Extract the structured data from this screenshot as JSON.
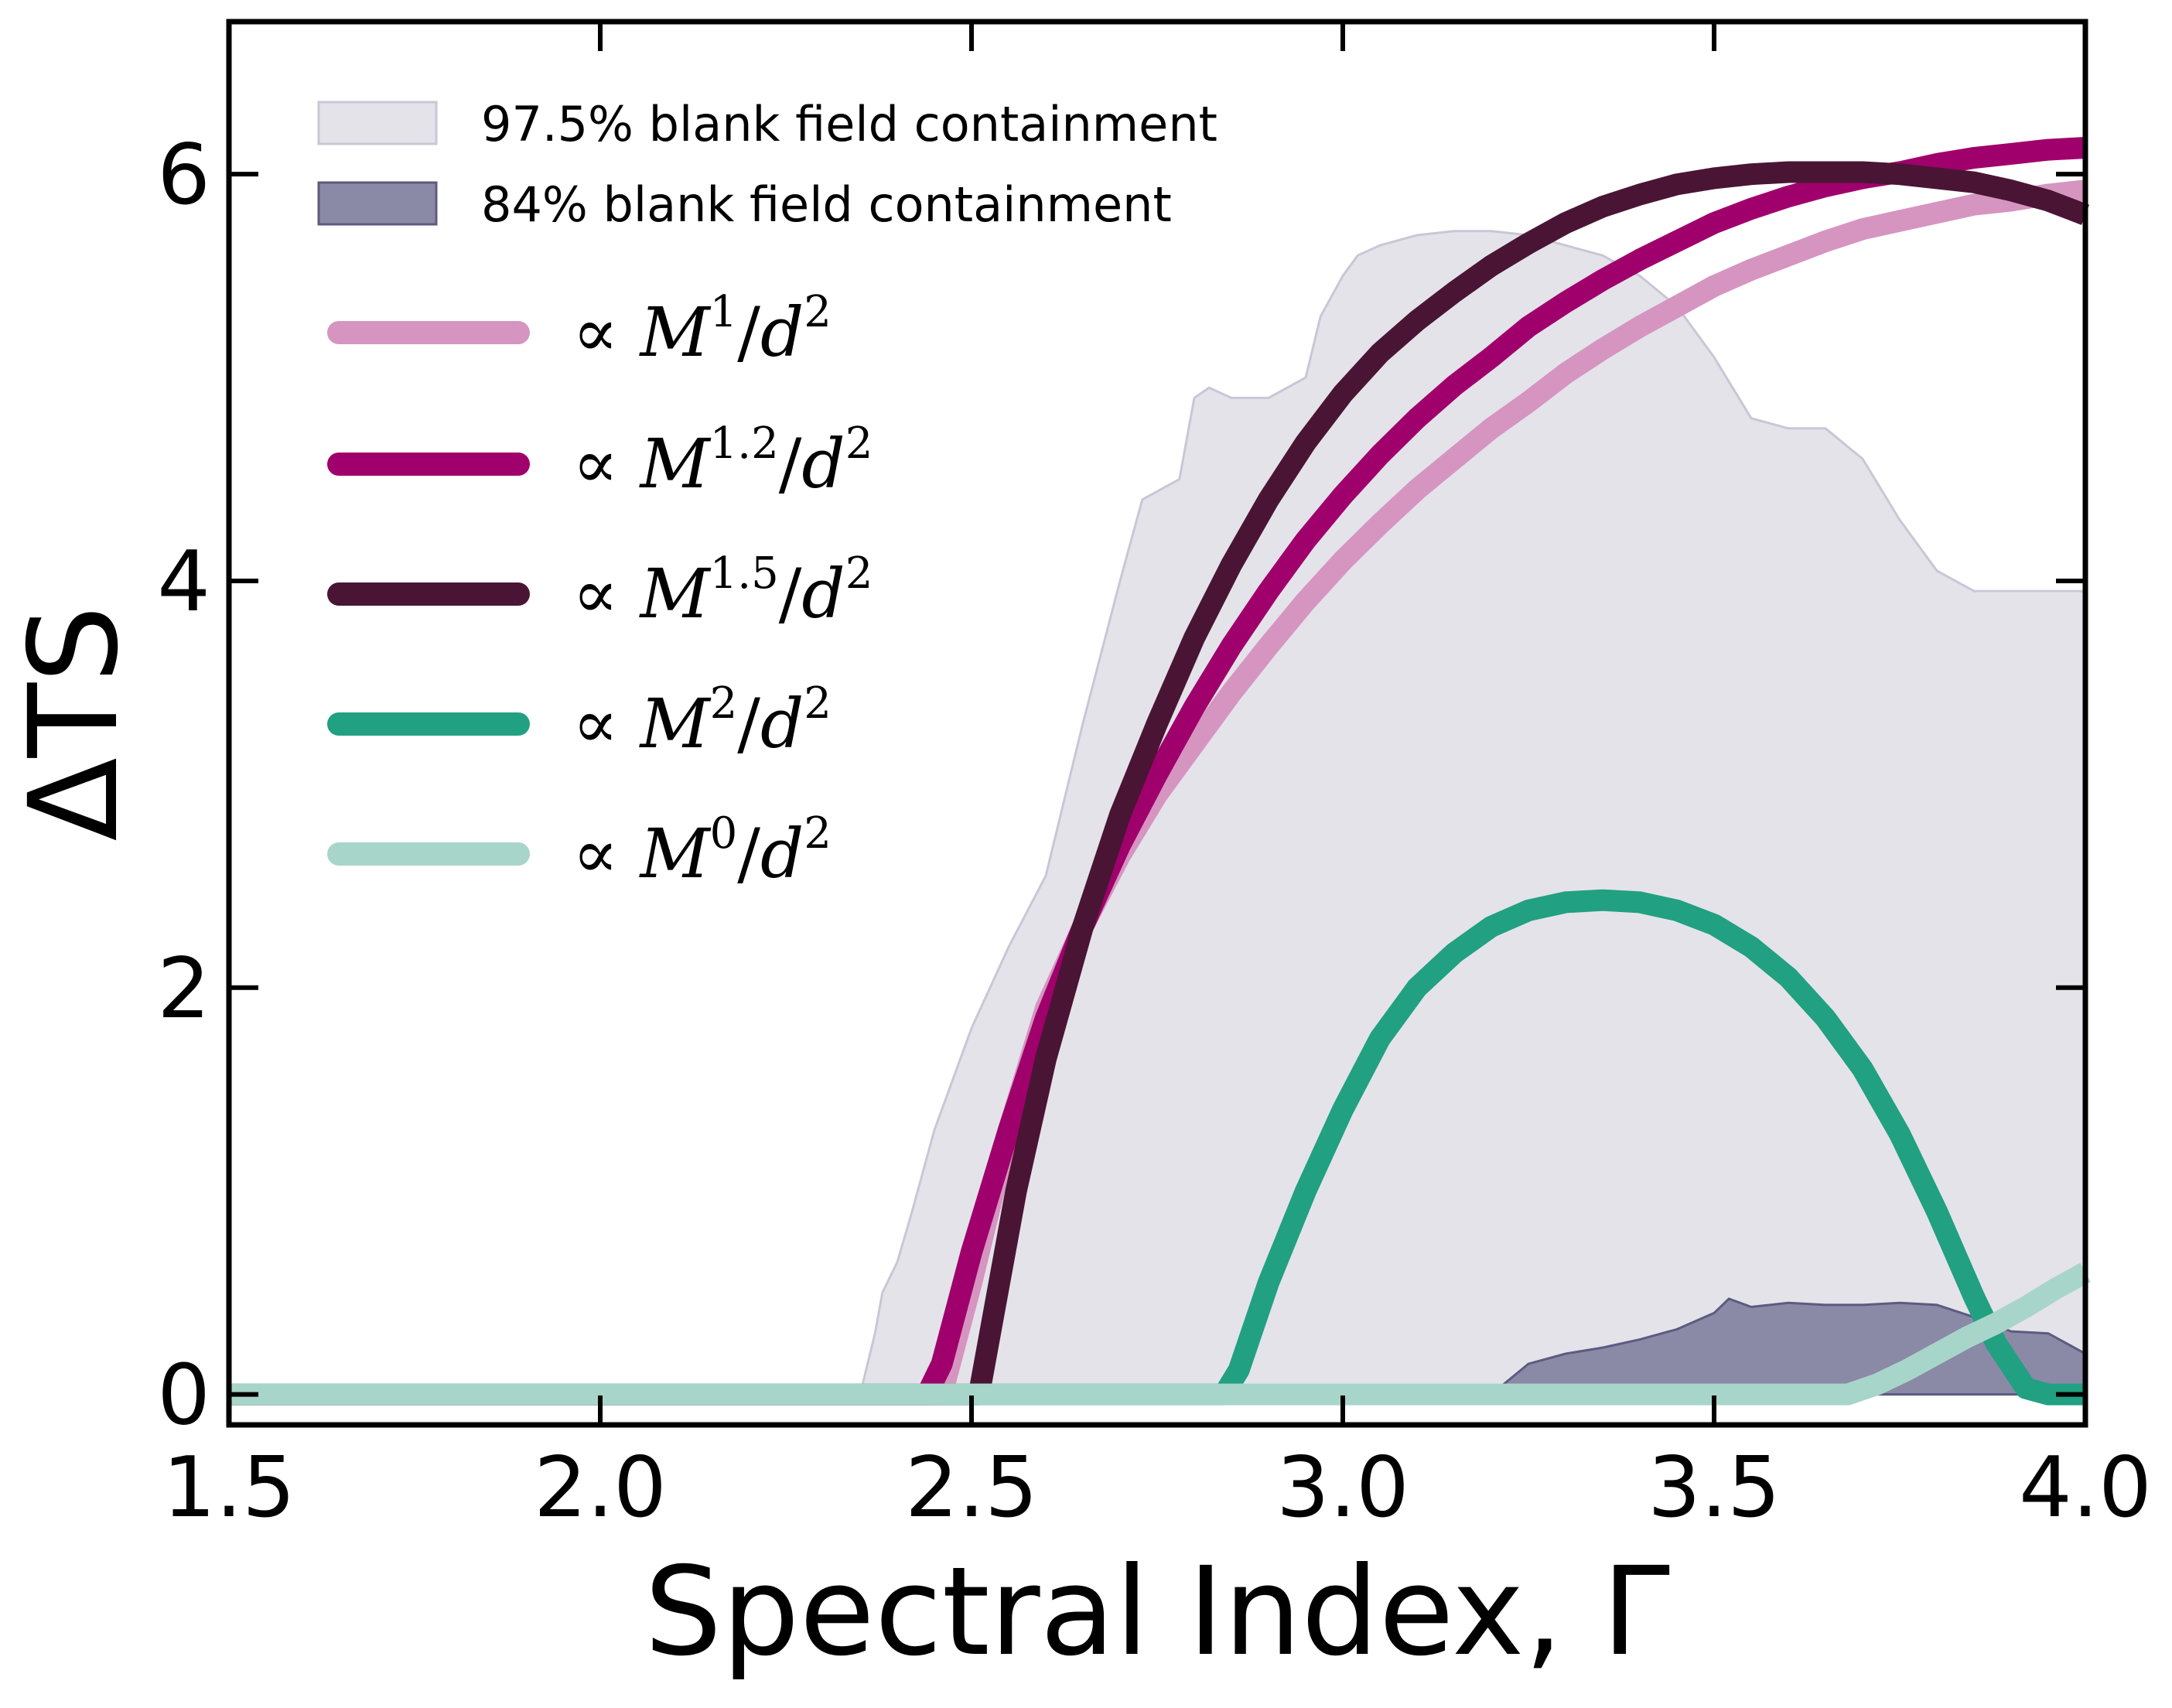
{
  "chart_data": {
    "type": "line",
    "xlabel": "Spectral Index, Γ",
    "ylabel": "ΔTS",
    "xlim": [
      1.5,
      4.0
    ],
    "ylim": [
      -0.15,
      6.75
    ],
    "xticks": [
      1.5,
      2.0,
      2.5,
      3.0,
      3.5,
      4.0
    ],
    "xtick_labels": [
      "1.5",
      "2.0",
      "2.5",
      "3.0",
      "3.5",
      "4.0"
    ],
    "yticks": [
      0,
      2,
      4,
      6
    ],
    "ytick_labels": [
      "0",
      "2",
      "4",
      "6"
    ],
    "legend_position": "upper-left",
    "bands": [
      {
        "name": "97.5% blank field containment",
        "color": "#e4e3ea",
        "edge_color": "#c9c7d6",
        "x": [
          1.5,
          2.35,
          2.37,
          2.38,
          2.4,
          2.42,
          2.45,
          2.5,
          2.55,
          2.6,
          2.65,
          2.7,
          2.73,
          2.78,
          2.8,
          2.82,
          2.85,
          2.9,
          2.95,
          2.97,
          3.0,
          3.02,
          3.05,
          3.1,
          3.15,
          3.2,
          3.25,
          3.3,
          3.35,
          3.4,
          3.45,
          3.5,
          3.55,
          3.6,
          3.65,
          3.7,
          3.75,
          3.8,
          3.85,
          3.9,
          4.0
        ],
        "upper": [
          0,
          0,
          0.3,
          0.5,
          0.65,
          0.9,
          1.3,
          1.8,
          2.2,
          2.55,
          3.3,
          4.0,
          4.4,
          4.5,
          4.9,
          4.95,
          4.9,
          4.9,
          5.0,
          5.3,
          5.5,
          5.6,
          5.65,
          5.7,
          5.72,
          5.72,
          5.7,
          5.65,
          5.6,
          5.5,
          5.35,
          5.1,
          4.8,
          4.75,
          4.75,
          4.6,
          4.3,
          4.05,
          3.95,
          3.95,
          3.95
        ],
        "lower": [
          0,
          0,
          0,
          0,
          0,
          0,
          0,
          0,
          0,
          0,
          0,
          0,
          0,
          0,
          0,
          0,
          0,
          0,
          0,
          0,
          0,
          0,
          0,
          0,
          0,
          0,
          0,
          0,
          0,
          0,
          0,
          0,
          0,
          0,
          0,
          0,
          0,
          0,
          0,
          0,
          0
        ]
      },
      {
        "name": "84% blank field containment",
        "color": "#8a89a6",
        "edge_color": "#5c5b80",
        "x": [
          1.5,
          3.2,
          3.22,
          3.25,
          3.3,
          3.35,
          3.4,
          3.45,
          3.5,
          3.52,
          3.55,
          3.6,
          3.65,
          3.7,
          3.75,
          3.8,
          3.85,
          3.9,
          3.95,
          4.0
        ],
        "upper": [
          0,
          0,
          0.06,
          0.15,
          0.2,
          0.23,
          0.27,
          0.32,
          0.4,
          0.47,
          0.43,
          0.45,
          0.44,
          0.44,
          0.45,
          0.44,
          0.38,
          0.31,
          0.3,
          0.2
        ],
        "lower": [
          0,
          0,
          0,
          0,
          0,
          0,
          0,
          0,
          0,
          0,
          0,
          0,
          0,
          0,
          0,
          0,
          0,
          0,
          0,
          0
        ]
      }
    ],
    "series": [
      {
        "name": "∝ M^1/d^2",
        "base": "M",
        "exponent": "1",
        "color": "#d595c0",
        "x": [
          1.5,
          2.46,
          2.5,
          2.55,
          2.6,
          2.65,
          2.7,
          2.75,
          2.8,
          2.85,
          2.9,
          2.95,
          3.0,
          3.05,
          3.1,
          3.15,
          3.2,
          3.25,
          3.3,
          3.35,
          3.4,
          3.45,
          3.5,
          3.55,
          3.6,
          3.65,
          3.7,
          3.75,
          3.8,
          3.85,
          3.9,
          3.95,
          4.0
        ],
        "y": [
          0,
          0,
          0.55,
          1.3,
          1.9,
          2.3,
          2.65,
          2.95,
          3.2,
          3.45,
          3.68,
          3.9,
          4.1,
          4.28,
          4.45,
          4.6,
          4.75,
          4.88,
          5.02,
          5.14,
          5.25,
          5.35,
          5.45,
          5.53,
          5.6,
          5.67,
          5.73,
          5.77,
          5.81,
          5.85,
          5.87,
          5.9,
          5.92
        ]
      },
      {
        "name": "∝ M^1.2/d^2",
        "base": "M",
        "exponent": "1.2",
        "color": "#a0006c",
        "x": [
          1.5,
          2.44,
          2.46,
          2.5,
          2.55,
          2.6,
          2.65,
          2.7,
          2.75,
          2.8,
          2.85,
          2.9,
          2.95,
          3.0,
          3.05,
          3.1,
          3.15,
          3.2,
          3.25,
          3.3,
          3.35,
          3.4,
          3.45,
          3.5,
          3.55,
          3.6,
          3.65,
          3.7,
          3.75,
          3.8,
          3.85,
          3.9,
          3.95,
          4.0
        ],
        "y": [
          0,
          0,
          0.15,
          0.7,
          1.3,
          1.85,
          2.3,
          2.7,
          3.05,
          3.38,
          3.68,
          3.95,
          4.2,
          4.42,
          4.62,
          4.8,
          4.96,
          5.1,
          5.25,
          5.37,
          5.48,
          5.58,
          5.67,
          5.76,
          5.83,
          5.89,
          5.94,
          5.98,
          6.01,
          6.05,
          6.08,
          6.1,
          6.12,
          6.13
        ]
      },
      {
        "name": "∝ M^1.5/d^2",
        "base": "M",
        "exponent": "1.5",
        "color": "#4a1535",
        "x": [
          1.5,
          2.51,
          2.53,
          2.56,
          2.6,
          2.65,
          2.7,
          2.75,
          2.8,
          2.85,
          2.9,
          2.95,
          3.0,
          3.05,
          3.1,
          3.15,
          3.2,
          3.25,
          3.3,
          3.35,
          3.4,
          3.45,
          3.5,
          3.55,
          3.6,
          3.65,
          3.7,
          3.75,
          3.8,
          3.85,
          3.9,
          3.95,
          4.0
        ],
        "y": [
          0,
          0,
          0.4,
          1.0,
          1.65,
          2.3,
          2.85,
          3.3,
          3.72,
          4.08,
          4.4,
          4.68,
          4.92,
          5.12,
          5.28,
          5.42,
          5.55,
          5.66,
          5.76,
          5.84,
          5.9,
          5.95,
          5.98,
          6.0,
          6.01,
          6.01,
          6.01,
          6.0,
          5.98,
          5.96,
          5.92,
          5.87,
          5.8
        ]
      },
      {
        "name": "∝ M^2/d^2",
        "base": "M",
        "exponent": "2",
        "color": "#21a082",
        "x": [
          1.5,
          2.84,
          2.86,
          2.9,
          2.95,
          3.0,
          3.05,
          3.1,
          3.15,
          3.2,
          3.25,
          3.3,
          3.35,
          3.4,
          3.45,
          3.5,
          3.55,
          3.6,
          3.65,
          3.7,
          3.75,
          3.8,
          3.85,
          3.88,
          3.92,
          3.95,
          4.0
        ],
        "y": [
          0,
          0,
          0.12,
          0.55,
          1.0,
          1.4,
          1.75,
          2.0,
          2.17,
          2.3,
          2.38,
          2.42,
          2.43,
          2.42,
          2.38,
          2.31,
          2.2,
          2.05,
          1.85,
          1.6,
          1.28,
          0.9,
          0.48,
          0.25,
          0.03,
          0,
          0
        ]
      },
      {
        "name": "∝ M^0/d^2",
        "base": "M",
        "exponent": "0",
        "color": "#a8d5c9",
        "x": [
          1.5,
          3.68,
          3.72,
          3.76,
          3.8,
          3.84,
          3.88,
          3.92,
          3.96,
          4.0
        ],
        "y": [
          0,
          0,
          0.05,
          0.12,
          0.2,
          0.28,
          0.35,
          0.43,
          0.52,
          0.6
        ]
      }
    ]
  }
}
